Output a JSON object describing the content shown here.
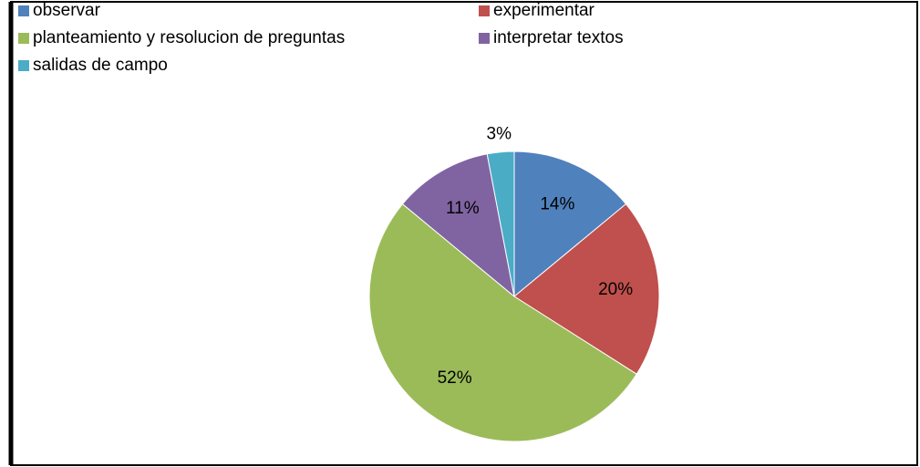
{
  "chart_data": {
    "type": "pie",
    "categories": [
      "observar",
      "experimentar",
      "planteamiento y resolucion de preguntas",
      "interpretar textos",
      "salidas de campo"
    ],
    "values": [
      14,
      20,
      52,
      11,
      3
    ],
    "value_labels": [
      "14%",
      "20%",
      "52%",
      "11%",
      "3%"
    ],
    "colors": [
      "#4f81bd",
      "#c0504d",
      "#9bbb59",
      "#8064a2",
      "#4bacc6"
    ],
    "legend": "top"
  }
}
